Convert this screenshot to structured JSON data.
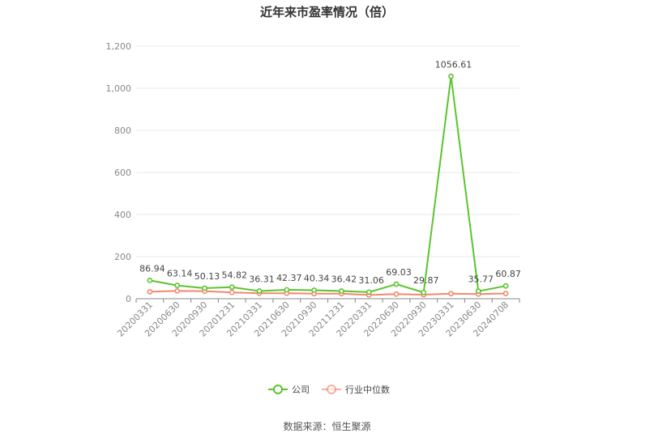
{
  "title": "近年来市盈率情况（倍）",
  "source": "数据来源：恒生聚源",
  "colors": {
    "company": "#5bc42f",
    "industry": "#f3886a",
    "grid": "#e8e8e8",
    "axis": "#888888"
  },
  "chart_data": {
    "type": "line",
    "title": "近年来市盈率情况（倍）",
    "xlabel": "",
    "ylabel": "",
    "ylim": [
      0,
      1200
    ],
    "yticks": [
      0,
      200,
      400,
      600,
      800,
      1000,
      1200
    ],
    "ytick_labels": [
      "0",
      "200",
      "400",
      "600",
      "800",
      "1,000",
      "1,200"
    ],
    "grid": "horizontal",
    "legend_position": "bottom-center",
    "categories": [
      "20200331",
      "20200630",
      "20200930",
      "20201231",
      "20210331",
      "20210630",
      "20210930",
      "20211231",
      "20220331",
      "20220630",
      "20220930",
      "20230331",
      "20230630",
      "20240708"
    ],
    "series": [
      {
        "name": "公司",
        "color": "#5bc42f",
        "values": [
          86.94,
          63.14,
          50.13,
          54.82,
          36.31,
          42.37,
          40.34,
          36.42,
          31.06,
          69.03,
          29.87,
          1056.61,
          35.77,
          60.87
        ],
        "labels": [
          "86.94",
          "63.14",
          "50.13",
          "54.82",
          "36.31",
          "42.37",
          "40.34",
          "36.42",
          "31.06",
          "69.03",
          "29.87",
          "1056.61",
          "35.77",
          "60.87"
        ]
      },
      {
        "name": "行业中位数",
        "color": "#f3886a",
        "values": [
          33,
          37,
          36,
          30,
          26,
          26,
          24,
          24,
          18,
          22,
          19,
          24,
          22,
          25
        ]
      }
    ]
  }
}
